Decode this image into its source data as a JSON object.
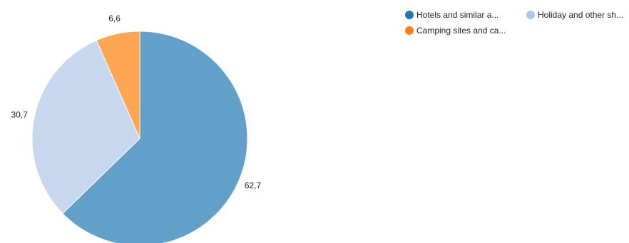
{
  "chart_data": {
    "type": "pie",
    "title": "",
    "categories": [
      "Hotels and similar a...",
      "Holiday and other sh...",
      "Camping sites and ca..."
    ],
    "values": [
      62.7,
      30.7,
      6.6
    ],
    "value_labels": [
      "62,7",
      "30,7",
      "6,6"
    ],
    "slice_colors": [
      "#62a0ca",
      "#c6d7ee",
      "#ffa654"
    ],
    "legend_colors": [
      "#1f77b4",
      "#aec7e8",
      "#ff7f0e"
    ],
    "legend_position": "top-right",
    "start_angle": "top, clockwise"
  }
}
